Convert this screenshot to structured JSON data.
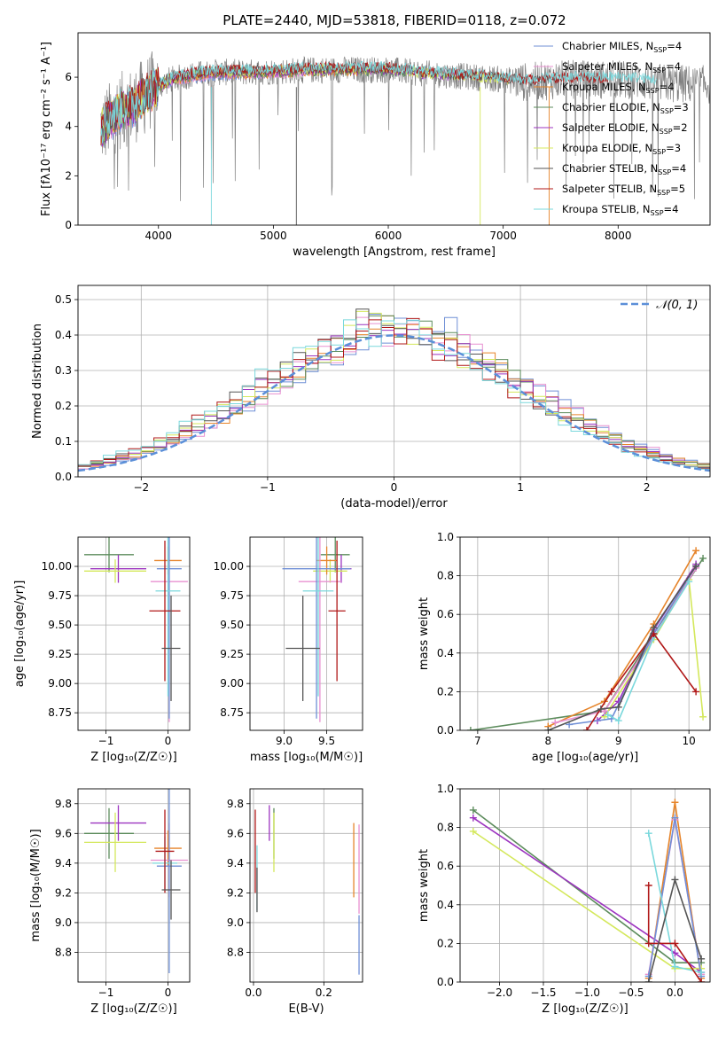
{
  "figure": {
    "title": "PLATE=2440, MJD=53818, FIBERID=0118, z=0.072"
  },
  "colors": {
    "Chabrier MILES": "#6f8fd6",
    "Salpeter MILES": "#e890d0",
    "Kroupa MILES": "#e6842a",
    "Chabrier ELODIE": "#5c8c5c",
    "Salpeter ELODIE": "#9c34c0",
    "Kroupa ELODIE": "#d4e85c",
    "Chabrier STELIB": "#555555",
    "Salpeter STELIB": "#b01818",
    "Kroupa STELIB": "#7ad8dc",
    "data": "#808080"
  },
  "chart_data": [
    {
      "id": "spectrum",
      "type": "line",
      "xlabel": "wavelength [Angstrom, rest frame]",
      "ylabel": "Flux [fλ10⁻¹⁷ erg cm⁻² s⁻¹ A⁻¹]",
      "xlim": [
        3300,
        8800
      ],
      "ylim": [
        0,
        7.8
      ],
      "xticks": [
        4000,
        5000,
        6000,
        7000,
        8000
      ],
      "yticks": [
        0,
        2,
        4,
        6
      ],
      "continuum": {
        "x": [
          3500,
          3650,
          3800,
          3950,
          4100,
          4300,
          4500,
          4800,
          5100,
          5400,
          5700,
          6000,
          6300,
          6600,
          6900,
          7200,
          7500,
          7800,
          8100,
          8400,
          8700
        ],
        "y": [
          3.9,
          4.6,
          4.9,
          5.5,
          5.9,
          6.1,
          6.2,
          6.2,
          6.25,
          6.3,
          6.3,
          6.3,
          6.15,
          6.05,
          5.95,
          5.8,
          5.9,
          5.9,
          5.9,
          5.75,
          5.7
        ]
      },
      "legend": {
        "placement": "right",
        "entries": [
          {
            "name": "Chabrier MILES",
            "suffix": "=4"
          },
          {
            "name": "Salpeter MILES",
            "suffix": "=4"
          },
          {
            "name": "Kroupa MILES",
            "suffix": "=4"
          },
          {
            "name": "Chabrier ELODIE",
            "suffix": "=3"
          },
          {
            "name": "Salpeter ELODIE",
            "suffix": "=2"
          },
          {
            "name": "Kroupa ELODIE",
            "suffix": "=3"
          },
          {
            "name": "Chabrier STELIB",
            "suffix": "=4"
          },
          {
            "name": "Salpeter STELIB",
            "suffix": "=5"
          },
          {
            "name": "Kroupa STELIB",
            "suffix": "=4"
          }
        ]
      }
    },
    {
      "id": "residuals",
      "type": "line",
      "xlabel": "(data-model)/error",
      "ylabel": "Normed distribution",
      "xlim": [
        -2.5,
        2.5
      ],
      "ylim": [
        0,
        0.54
      ],
      "xticks": [
        -2,
        -1,
        0,
        1,
        2
      ],
      "yticks": [
        0.0,
        0.1,
        0.2,
        0.3,
        0.4,
        0.5
      ],
      "legend_label": "𝒩(0, 1)",
      "bin_width": 0.1
    },
    {
      "id": "age_vs_Z",
      "type": "scatter",
      "xlabel": "Z [log₁₀(Z/Z☉)]",
      "ylabel": "age  [log₁₀(age/yr)]",
      "xlim": [
        -1.45,
        0.35
      ],
      "ylim": [
        8.6,
        10.25
      ],
      "xticks": [
        -1,
        0
      ],
      "yticks": [
        8.75,
        9.0,
        9.25,
        9.5,
        9.75,
        10.0
      ],
      "points": [
        {
          "model": "Chabrier ELODIE",
          "x": -0.95,
          "xerr": 0.4,
          "y": 10.1,
          "yerr": 0.15
        },
        {
          "model": "Salpeter ELODIE",
          "x": -0.8,
          "xerr": 0.45,
          "y": 9.98,
          "yerr": 0.12
        },
        {
          "model": "Kroupa ELODIE",
          "x": -0.85,
          "xerr": 0.5,
          "y": 9.96,
          "yerr": 0.1
        },
        {
          "model": "Kroupa MILES",
          "x": 0.0,
          "xerr": 0.22,
          "y": 10.05,
          "yerr": 0.12
        },
        {
          "model": "Salpeter MILES",
          "x": 0.02,
          "xerr": 0.3,
          "y": 9.87,
          "yerr": 1.2
        },
        {
          "model": "Chabrier MILES",
          "x": 0.02,
          "xerr": 0.2,
          "y": 9.98,
          "yerr": 1.28
        },
        {
          "model": "Kroupa STELIB",
          "x": 0.0,
          "xerr": 0.2,
          "y": 9.79,
          "yerr": 0.9
        },
        {
          "model": "Salpeter STELIB",
          "x": -0.05,
          "xerr": 0.25,
          "y": 9.62,
          "yerr": 0.6
        },
        {
          "model": "Chabrier STELIB",
          "x": 0.05,
          "xerr": 0.15,
          "y": 9.3,
          "yerr": 0.45
        }
      ]
    },
    {
      "id": "age_vs_mass",
      "type": "scatter",
      "xlabel": "mass [log₁₀(M/M☉)]",
      "xlim": [
        8.6,
        9.92
      ],
      "ylim": [
        8.6,
        10.25
      ],
      "xticks": [
        9.0,
        9.5
      ],
      "yticks": [
        8.75,
        9.0,
        9.25,
        9.5,
        9.75,
        10.0
      ],
      "points": [
        {
          "model": "Chabrier ELODIE",
          "x": 9.6,
          "xerr": 0.17,
          "y": 10.1,
          "yerr": 0.15
        },
        {
          "model": "Salpeter ELODIE",
          "x": 9.67,
          "xerr": 0.12,
          "y": 9.98,
          "yerr": 0.12
        },
        {
          "model": "Kroupa ELODIE",
          "x": 9.54,
          "xerr": 0.2,
          "y": 9.96,
          "yerr": 0.1
        },
        {
          "model": "Kroupa MILES",
          "x": 9.5,
          "xerr": 0.12,
          "y": 10.05,
          "yerr": 0.12
        },
        {
          "model": "Salpeter MILES",
          "x": 9.42,
          "xerr": 0.25,
          "y": 9.87,
          "yerr": 1.2
        },
        {
          "model": "Chabrier MILES",
          "x": 9.38,
          "xerr": 0.4,
          "y": 9.98,
          "yerr": 1.28
        },
        {
          "model": "Kroupa STELIB",
          "x": 9.4,
          "xerr": 0.18,
          "y": 9.79,
          "yerr": 0.9
        },
        {
          "model": "Salpeter STELIB",
          "x": 9.62,
          "xerr": 0.1,
          "y": 9.62,
          "yerr": 0.6
        },
        {
          "model": "Chabrier STELIB",
          "x": 9.22,
          "xerr": 0.2,
          "y": 9.3,
          "yerr": 0.45
        }
      ]
    },
    {
      "id": "mass_weight_vs_age",
      "type": "line",
      "xlabel": "age  [log₁₀(age/yr)]",
      "ylabel": "mass weight",
      "xlim": [
        6.75,
        10.3
      ],
      "ylim": [
        0,
        1.0
      ],
      "xticks": [
        7,
        8,
        9,
        10
      ],
      "yticks": [
        0.0,
        0.2,
        0.4,
        0.6,
        0.8,
        1.0
      ],
      "series": [
        {
          "model": "Chabrier ELODIE",
          "x": [
            6.9,
            8.8,
            9.5,
            10.2
          ],
          "y": [
            0.0,
            0.1,
            0.5,
            0.89
          ]
        },
        {
          "model": "Salpeter ELODIE",
          "x": [
            8.7,
            9.0,
            9.5,
            10.1
          ],
          "y": [
            0.05,
            0.15,
            0.52,
            0.86
          ]
        },
        {
          "model": "Kroupa ELODIE",
          "x": [
            8.8,
            9.5,
            10.0,
            10.2
          ],
          "y": [
            0.07,
            0.47,
            0.78,
            0.07
          ]
        },
        {
          "model": "Kroupa MILES",
          "x": [
            8.0,
            8.8,
            9.5,
            10.1
          ],
          "y": [
            0.02,
            0.15,
            0.55,
            0.93
          ]
        },
        {
          "model": "Salpeter MILES",
          "x": [
            8.1,
            8.8,
            9.5,
            10.1
          ],
          "y": [
            0.04,
            0.1,
            0.48,
            0.84
          ]
        },
        {
          "model": "Chabrier MILES",
          "x": [
            8.3,
            8.9,
            9.5,
            10.1
          ],
          "y": [
            0.03,
            0.06,
            0.5,
            0.85
          ]
        },
        {
          "model": "Kroupa STELIB",
          "x": [
            8.85,
            9.0,
            9.5,
            10.0
          ],
          "y": [
            0.08,
            0.05,
            0.48,
            0.77
          ]
        },
        {
          "model": "Salpeter STELIB",
          "x": [
            8.55,
            8.9,
            9.5,
            10.1
          ],
          "y": [
            0.0,
            0.2,
            0.5,
            0.2
          ]
        },
        {
          "model": "Chabrier STELIB",
          "x": [
            8.0,
            8.75,
            9.0,
            9.5,
            10.1
          ],
          "y": [
            0.0,
            0.11,
            0.12,
            0.53,
            0.85
          ]
        }
      ]
    },
    {
      "id": "mass_vs_Z",
      "type": "scatter",
      "xlabel": "Z [log₁₀(Z/Z☉)]",
      "ylabel": "mass [log₁₀(M/M☉)]",
      "xlim": [
        -1.45,
        0.35
      ],
      "ylim": [
        8.6,
        9.9
      ],
      "xticks": [
        -1,
        0
      ],
      "yticks": [
        8.8,
        9.0,
        9.2,
        9.4,
        9.6,
        9.8
      ],
      "points": [
        {
          "model": "Chabrier ELODIE",
          "x": -0.95,
          "xerr": 0.4,
          "y": 9.6,
          "yerr": 0.17
        },
        {
          "model": "Salpeter ELODIE",
          "x": -0.8,
          "xerr": 0.45,
          "y": 9.67,
          "yerr": 0.12
        },
        {
          "model": "Kroupa ELODIE",
          "x": -0.85,
          "xerr": 0.5,
          "y": 9.54,
          "yerr": 0.2
        },
        {
          "model": "Kroupa MILES",
          "x": 0.0,
          "xerr": 0.22,
          "y": 9.5,
          "yerr": 0.12
        },
        {
          "model": "Salpeter MILES",
          "x": 0.02,
          "xerr": 0.3,
          "y": 9.42,
          "yerr": 0.25
        },
        {
          "model": "Chabrier MILES",
          "x": 0.02,
          "xerr": 0.2,
          "y": 9.38,
          "yerr": 0.72
        },
        {
          "model": "Kroupa STELIB",
          "x": -0.05,
          "xerr": 0.2,
          "y": 9.4,
          "yerr": 0.18
        },
        {
          "model": "Salpeter STELIB",
          "x": -0.05,
          "xerr": 0.15,
          "y": 9.48,
          "yerr": 0.28
        },
        {
          "model": "Chabrier STELIB",
          "x": 0.05,
          "xerr": 0.15,
          "y": 9.22,
          "yerr": 0.2
        }
      ]
    },
    {
      "id": "mass_vs_ebv",
      "type": "scatter",
      "xlabel": "E(B-V)",
      "xlim": [
        -0.01,
        0.31
      ],
      "ylim": [
        8.6,
        9.9
      ],
      "xticks": [
        0.0,
        0.2
      ],
      "yticks": [
        8.8,
        9.0,
        9.2,
        9.4,
        9.6,
        9.8
      ],
      "points": [
        {
          "model": "Chabrier ELODIE",
          "x": 0.058,
          "xerr": 0,
          "y": 9.6,
          "yerr": 0.17
        },
        {
          "model": "Salpeter ELODIE",
          "x": 0.045,
          "xerr": 0,
          "y": 9.67,
          "yerr": 0.12
        },
        {
          "model": "Kroupa ELODIE",
          "x": 0.058,
          "xerr": 0,
          "y": 9.54,
          "yerr": 0.2
        },
        {
          "model": "Kroupa MILES",
          "x": 0.285,
          "xerr": 0,
          "y": 9.42,
          "yerr": 0.25
        },
        {
          "model": "Salpeter MILES",
          "x": 0.3,
          "xerr": 0,
          "y": 9.36,
          "yerr": 0.3
        },
        {
          "model": "Chabrier MILES",
          "x": 0.3,
          "xerr": 0,
          "y": 8.85,
          "yerr": 0.2
        },
        {
          "model": "Kroupa STELIB",
          "x": 0.01,
          "xerr": 0,
          "y": 9.3,
          "yerr": 0.22
        },
        {
          "model": "Salpeter STELIB",
          "x": 0.005,
          "xerr": 0,
          "y": 9.48,
          "yerr": 0.28
        },
        {
          "model": "Chabrier STELIB",
          "x": 0.01,
          "xerr": 0,
          "y": 9.22,
          "yerr": 0.15
        }
      ]
    },
    {
      "id": "mass_weight_vs_Z",
      "type": "line",
      "xlabel": "Z [log₁₀(Z/Z☉)]",
      "ylabel": "mass weight",
      "xlim": [
        -2.45,
        0.4
      ],
      "ylim": [
        0,
        1.0
      ],
      "xticks": [
        -2.0,
        -1.5,
        -1.0,
        -0.5,
        0.0
      ],
      "yticks": [
        0.0,
        0.2,
        0.4,
        0.6,
        0.8,
        1.0
      ],
      "series": [
        {
          "model": "Chabrier ELODIE",
          "x": [
            -2.3,
            0.0,
            0.3
          ],
          "y": [
            0.89,
            0.1,
            0.1
          ]
        },
        {
          "model": "Salpeter ELODIE",
          "x": [
            -2.3,
            0.0,
            0.3
          ],
          "y": [
            0.85,
            0.15,
            0.05
          ]
        },
        {
          "model": "Kroupa ELODIE",
          "x": [
            -2.3,
            0.0,
            0.3
          ],
          "y": [
            0.78,
            0.07,
            0.07
          ]
        },
        {
          "model": "Kroupa MILES",
          "x": [
            -0.3,
            0.0,
            0.3
          ],
          "y": [
            0.02,
            0.93,
            0.02
          ]
        },
        {
          "model": "Salpeter MILES",
          "x": [
            -0.3,
            0.0,
            0.3
          ],
          "y": [
            0.04,
            0.84,
            0.04
          ]
        },
        {
          "model": "Chabrier MILES",
          "x": [
            -0.3,
            0.0,
            0.3
          ],
          "y": [
            0.03,
            0.85,
            0.03
          ]
        },
        {
          "model": "Kroupa STELIB",
          "x": [
            -0.3,
            0.0,
            0.3
          ],
          "y": [
            0.77,
            0.08,
            0.05
          ]
        },
        {
          "model": "Salpeter STELIB",
          "x": [
            -0.3,
            -0.3,
            0.0,
            0.3
          ],
          "y": [
            0.5,
            0.2,
            0.2,
            0.0
          ]
        },
        {
          "model": "Chabrier STELIB",
          "x": [
            -0.3,
            0.0,
            0.3
          ],
          "y": [
            0.0,
            0.53,
            0.12
          ]
        }
      ]
    }
  ]
}
